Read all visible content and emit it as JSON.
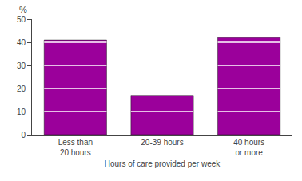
{
  "chart_data": {
    "type": "bar",
    "categories": [
      "Less than\n20 hours",
      "20-39 hours",
      "40 hours\nor more"
    ],
    "values": [
      41,
      17,
      42
    ],
    "color": "#9B009B",
    "xlabel": "Hours of care provided per week",
    "ylabel": "%",
    "ylim": [
      0,
      50
    ],
    "yticks": [
      0,
      10,
      20,
      30,
      40,
      50
    ],
    "grid": false
  }
}
